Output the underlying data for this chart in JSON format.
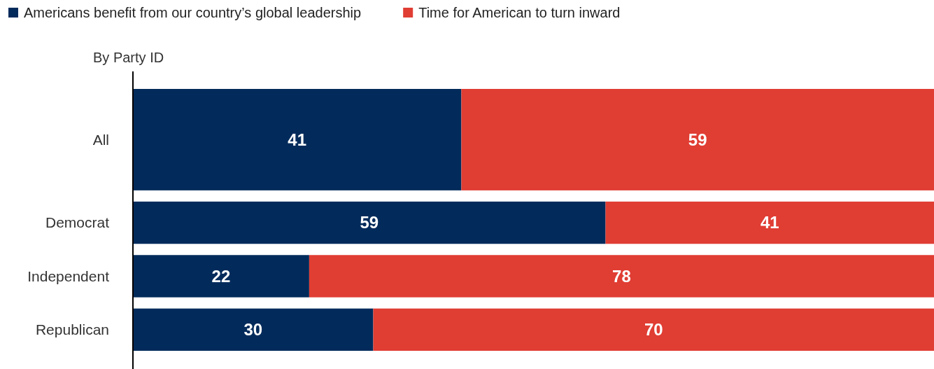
{
  "chart_data": {
    "type": "bar",
    "orientation": "horizontal",
    "stacked": true,
    "ylabel": "By Party ID",
    "categories": [
      "All",
      "Democrat",
      "Independent",
      "Republican"
    ],
    "series": [
      {
        "name": "Americans benefit from our country’s global leadership",
        "color": "#022b5b",
        "values": [
          41,
          59,
          22,
          30
        ]
      },
      {
        "name": "Time for American to turn inward",
        "color": "#e03d33",
        "values": [
          59,
          41,
          78,
          70
        ]
      }
    ],
    "xlim": [
      0,
      100
    ],
    "tick_labels": "y",
    "data_labels": true,
    "legend": "top left"
  }
}
